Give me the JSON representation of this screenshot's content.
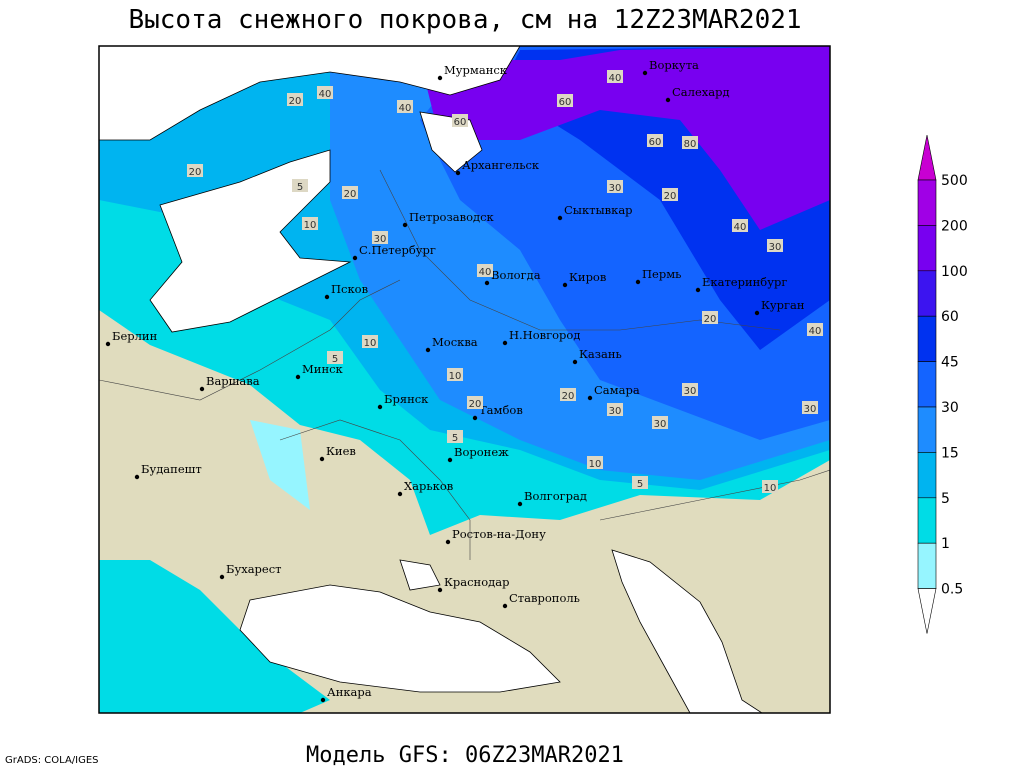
{
  "header": {
    "title": "Высота снежного покрова, см на 12Z23MAR2021"
  },
  "footer": {
    "model": "Модель GFS: 06Z23MAR2021",
    "credit": "GrADS: COLA/IGES"
  },
  "cities": [
    "Мурманск",
    "Воркута",
    "Салехард",
    "Архангельск",
    "Петрозаводск",
    "Сыктывкар",
    "С.Петербург",
    "Вологда",
    "Киров",
    "Пермь",
    "Екатеринбург",
    "Курган",
    "Псков",
    "Берлин",
    "Москва",
    "Н.Новгород",
    "Казань",
    "Минск",
    "Варшава",
    "Брянск",
    "Тамбов",
    "Самара",
    "Воронеж",
    "Киев",
    "Будапешт",
    "Харьков",
    "Волгоград",
    "Ростов-на-Дону",
    "Бухарест",
    "Краснодар",
    "Ставрополь",
    "Анкара"
  ],
  "contour_labels": [
    "40",
    "60",
    "20",
    "10",
    "30",
    "20",
    "40",
    "60",
    "80",
    "60",
    "30",
    "20",
    "10",
    "5",
    "40",
    "30",
    "20",
    "10",
    "5",
    "40",
    "30",
    "20",
    "30",
    "40",
    "20",
    "30",
    "10",
    "5",
    "10",
    "5",
    "20",
    "30",
    "40"
  ],
  "legend": {
    "levels": [
      500,
      200,
      100,
      60,
      45,
      30,
      15,
      5,
      1,
      0.5
    ],
    "colors": [
      "#a000e6",
      "#7800f0",
      "#3c14f0",
      "#0032f0",
      "#1464ff",
      "#1e8cff",
      "#00b4f0",
      "#00dce6",
      "#96f5ff"
    ],
    "top_color": "#c800d2"
  }
}
